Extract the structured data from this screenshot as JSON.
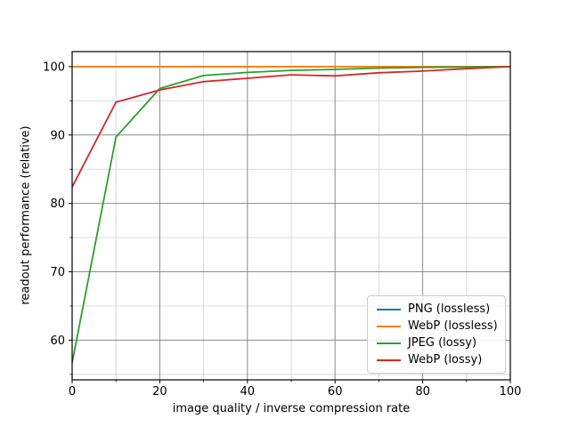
{
  "chart_data": {
    "type": "line",
    "x": [
      0,
      10,
      20,
      30,
      40,
      50,
      60,
      70,
      80,
      90,
      100
    ],
    "series": [
      {
        "name": "PNG (lossless)",
        "color": "#1f77b4",
        "values": [
          100,
          100,
          100,
          100,
          100,
          100,
          100,
          100,
          100,
          100,
          100
        ]
      },
      {
        "name": "WebP (lossless)",
        "color": "#ff7f0e",
        "values": [
          100,
          100,
          100,
          100,
          100,
          100,
          100,
          100,
          100,
          100,
          100
        ]
      },
      {
        "name": "JPEG (lossy)",
        "color": "#2ca02c",
        "values": [
          56.7,
          89.7,
          96.8,
          98.7,
          99.15,
          99.45,
          99.6,
          99.8,
          99.9,
          99.95,
          100
        ]
      },
      {
        "name": "WebP (lossy)",
        "color": "#d62728",
        "values": [
          82.4,
          94.8,
          96.6,
          97.8,
          98.3,
          98.8,
          98.65,
          99.1,
          99.35,
          99.7,
          100
        ]
      }
    ],
    "title": "",
    "xlabel": "image quality / inverse compression rate",
    "ylabel": "readout performance (relative)",
    "xlim": [
      0,
      100
    ],
    "ylim": [
      54.2,
      102.2
    ],
    "x_major_ticks": [
      0,
      20,
      40,
      60,
      80,
      100
    ],
    "x_minor_ticks": [
      10,
      30,
      50,
      70,
      90
    ],
    "y_major_ticks": [
      60,
      70,
      80,
      90,
      100
    ],
    "y_minor_ticks": [
      55,
      65,
      75,
      85,
      95
    ],
    "grid": "major+minor",
    "legend_position": "lower right",
    "colors": {
      "spine": "#000000",
      "major_grid": "#8c8c8c",
      "minor_grid": "#d9d9d9",
      "tick_text": "#000000"
    }
  }
}
